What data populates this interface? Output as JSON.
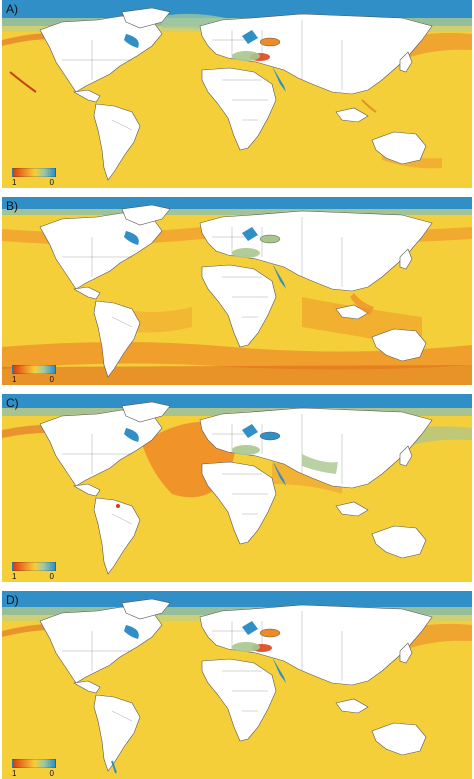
{
  "panels": [
    {
      "label": "A)"
    },
    {
      "label": "B)"
    },
    {
      "label": "C)"
    },
    {
      "label": "D)"
    }
  ],
  "legend": {
    "min_label": "1",
    "max_label": "0"
  },
  "colors": {
    "ocean_yellow": "#f5cf3a",
    "high_orange": "#ef8a27",
    "high_red": "#d93c11",
    "mid_green": "#a9c58e",
    "low_blue": "#2f8fc6",
    "land_white": "#ffffff",
    "border_gray": "#666666"
  }
}
